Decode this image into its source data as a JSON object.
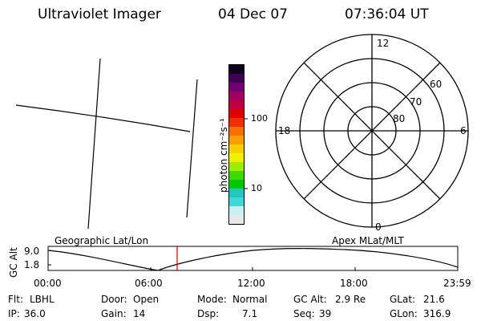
{
  "header": {
    "title": "Ultraviolet Imager",
    "date": "04 Dec 07",
    "time": "07:36:04 UT"
  },
  "colorbar": {
    "unit_label": "photon cm⁻²s⁻¹",
    "tick_labels": [
      "100",
      "10"
    ],
    "colors": [
      "#e8e8e8",
      "#c8f0f0",
      "#40d8d8",
      "#20c8c0",
      "#00c800",
      "#40d800",
      "#a0ec00",
      "#f0f000",
      "#f8d000",
      "#f8a000",
      "#f87000",
      "#f03000",
      "#e00000",
      "#c00040",
      "#a00060",
      "#700070",
      "#400050",
      "#100020"
    ]
  },
  "polar_plot": {
    "top_label": "12",
    "left_label": "18",
    "right_label": "6",
    "bottom_label": "0",
    "lat_labels": [
      "60",
      "70",
      "80"
    ]
  },
  "timeline": {
    "y_axis_label": "GC Alt",
    "y_ticks": [
      "9.0",
      "1.8"
    ],
    "left_caption": "Geographic Lat/Lon",
    "right_caption": "Apex MLat/MLT",
    "x_ticks": [
      "00:00",
      "06:00",
      "12:00",
      "18:00",
      "23:59"
    ],
    "marker_color": "#c00000"
  },
  "status": {
    "filter_label": "Flt:",
    "filter_value": "LBHL",
    "ip_label": "IP:",
    "ip_value": "36.0",
    "door_label": "Door:",
    "door_value": "Open",
    "gain_label": "Gain:",
    "gain_value": "14",
    "mode_label": "Mode:",
    "mode_value": "Normal",
    "dsp_label": "Dsp:",
    "dsp_value": "7.1",
    "gcalt_label": "GC Alt:",
    "gcalt_value": "2.9 Re",
    "seq_label": "Seq:",
    "seq_value": "39",
    "glat_label": "GLat:",
    "glat_value": "21.6",
    "glon_label": "GLon:",
    "glon_value": "316.9"
  }
}
